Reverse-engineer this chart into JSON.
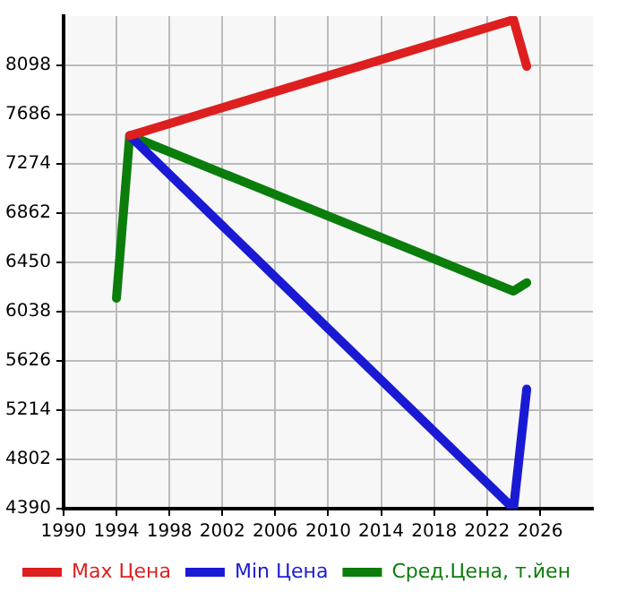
{
  "chart_data": {
    "type": "line",
    "series": [
      {
        "name": "Max Цена",
        "color": "#dd1f1f",
        "x": [
          1995,
          2024,
          2025
        ],
        "values": [
          7510,
          8480,
          8090
        ]
      },
      {
        "name": "Min Цена",
        "color": "#1a1ad4",
        "x": [
          1995,
          2024,
          2025
        ],
        "values": [
          7510,
          4390,
          5390
        ]
      },
      {
        "name": "Сред.Цена, т.йен",
        "color": "#0b7d0b",
        "x": [
          1994,
          1995,
          2024,
          2025
        ],
        "values": [
          6150,
          7510,
          6210,
          6280
        ]
      }
    ],
    "xlim": [
      1990,
      2030
    ],
    "xticks": [
      1990,
      1994,
      1998,
      2002,
      2006,
      2010,
      2014,
      2018,
      2022,
      2026
    ],
    "ylim": [
      4390,
      8510
    ],
    "yticks": [
      4390,
      4802,
      5214,
      5626,
      6038,
      6450,
      6862,
      7274,
      7686,
      8098
    ],
    "grid": true,
    "legend": "bottom",
    "marker": "none",
    "line_style": "solid"
  }
}
